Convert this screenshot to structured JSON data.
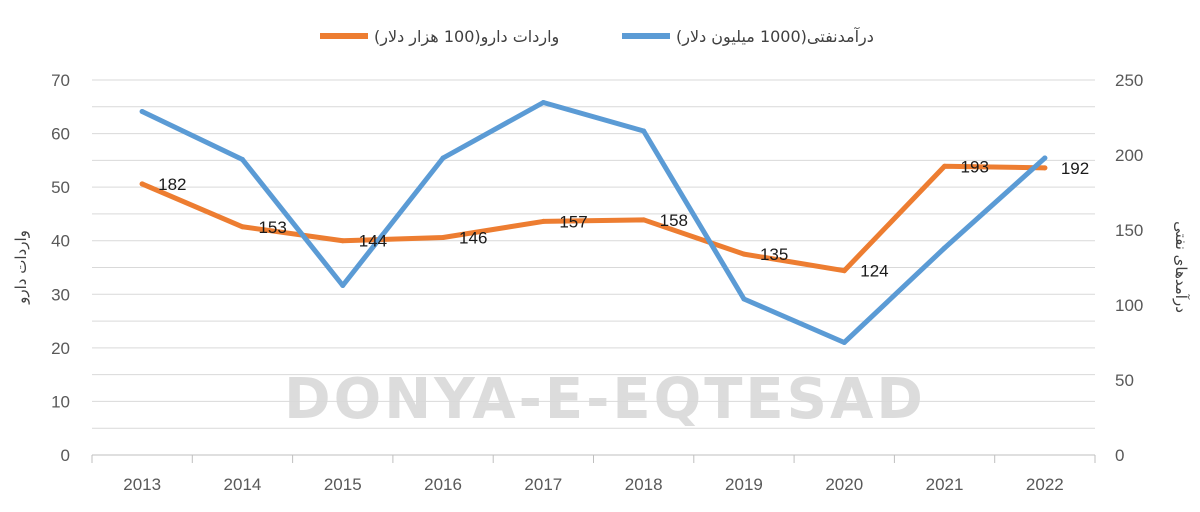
{
  "chart_data": {
    "type": "line",
    "categories": [
      "2013",
      "2014",
      "2015",
      "2016",
      "2017",
      "2018",
      "2019",
      "2020",
      "2021",
      "2022"
    ],
    "series": [
      {
        "name": "واردات دارو(100 هزار دلار)",
        "axis": "left",
        "color": "#ED7D31",
        "values": [
          50.6,
          42.6,
          40.0,
          40.6,
          43.6,
          43.9,
          37.5,
          34.4,
          53.9,
          53.6
        ],
        "labels": [
          "182",
          "153",
          "144",
          "146",
          "157",
          "158",
          "135",
          "124",
          "193",
          "192"
        ]
      },
      {
        "name": "درآمدنفتی(1000 میلیون دلار)",
        "axis": "right",
        "color": "#5B9BD5",
        "values": [
          229,
          197,
          113,
          198,
          235,
          216,
          104,
          75,
          138,
          198
        ]
      }
    ],
    "ylabel": "واردات دارو",
    "y2label": "درآمدهای نفتی",
    "ylim": [
      0,
      70
    ],
    "y2lim": [
      0,
      250
    ],
    "yticks": [
      "0",
      "10",
      "20",
      "30",
      "40",
      "50",
      "60",
      "70"
    ],
    "y2ticks": [
      "0",
      "50",
      "100",
      "150",
      "200",
      "250"
    ],
    "grid": true,
    "legend_position": "top-center",
    "watermark": "DONYA-E-EQTESAD"
  }
}
